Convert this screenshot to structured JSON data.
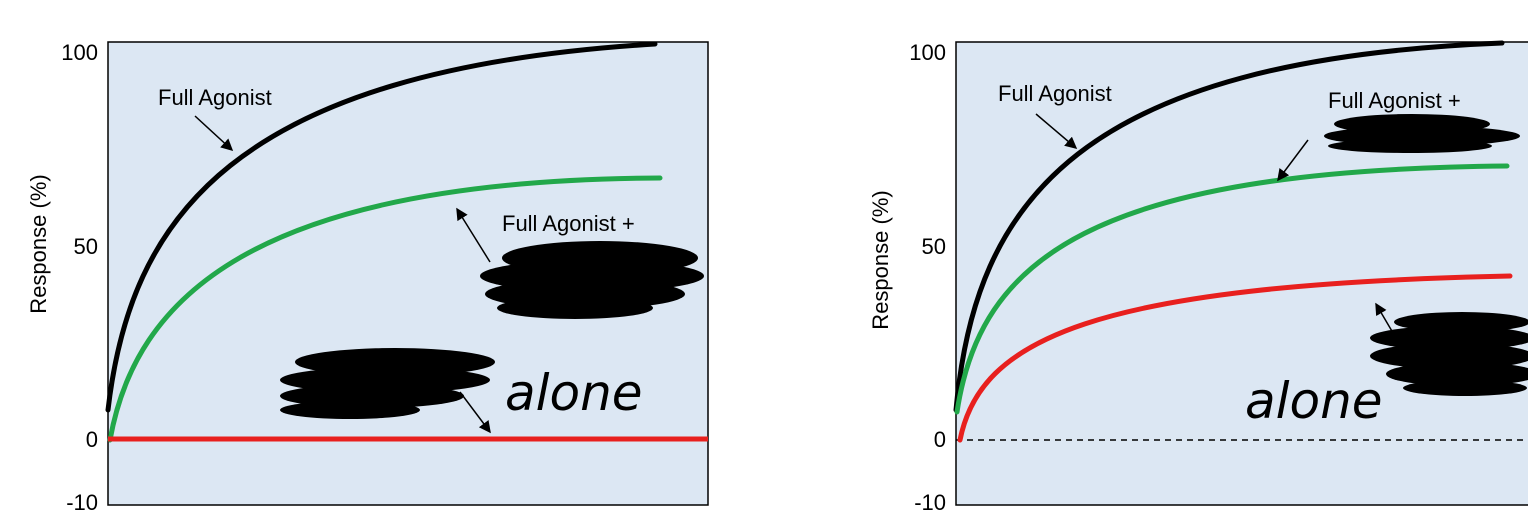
{
  "colors": {
    "plot_bg": "#dce7f3",
    "full_agonist": "#000000",
    "agonist_plus": "#22a84a",
    "alone": "#e8201e",
    "scribble": "#000000"
  },
  "chart_data": [
    {
      "type": "line",
      "ylabel": "Response (%)",
      "yticks": [
        "100",
        "50",
        "0",
        "-10"
      ],
      "ylim": [
        -10,
        100
      ],
      "zero_line": "solid",
      "grid": false,
      "series": [
        {
          "key": "full_agonist",
          "x": [
            0,
            0.25,
            0.5,
            0.75,
            1
          ],
          "values": [
            8,
            68,
            86,
            95,
            100
          ]
        },
        {
          "key": "agonist_plus",
          "x": [
            0,
            0.25,
            0.5,
            0.75,
            1
          ],
          "values": [
            0,
            45,
            58,
            64,
            67
          ]
        },
        {
          "key": "alone",
          "x": [
            0,
            0.25,
            0.5,
            0.75,
            1
          ],
          "values": [
            0,
            0,
            0,
            0,
            0
          ]
        }
      ],
      "annotations": {
        "full_agonist": "Full Agonist",
        "agonist_plus": "Full Agonist +",
        "handwritten": "alone"
      }
    },
    {
      "type": "line",
      "ylabel": "Response (%)",
      "yticks": [
        "100",
        "50",
        "0",
        "-10"
      ],
      "ylim": [
        -10,
        100
      ],
      "zero_line": "dashed",
      "grid": false,
      "series": [
        {
          "key": "full_agonist",
          "x": [
            0,
            0.25,
            0.5,
            0.75,
            1
          ],
          "values": [
            8,
            72,
            88,
            96,
            100
          ]
        },
        {
          "key": "agonist_plus",
          "x": [
            0,
            0.25,
            0.5,
            0.75,
            1
          ],
          "values": [
            8,
            50,
            61,
            67,
            70
          ]
        },
        {
          "key": "alone",
          "x": [
            0,
            0.25,
            0.5,
            0.75,
            1
          ],
          "values": [
            0,
            30,
            37,
            40,
            42
          ]
        }
      ],
      "annotations": {
        "full_agonist": "Full Agonist",
        "agonist_plus": "Full Agonist +",
        "handwritten": "alone"
      }
    }
  ]
}
